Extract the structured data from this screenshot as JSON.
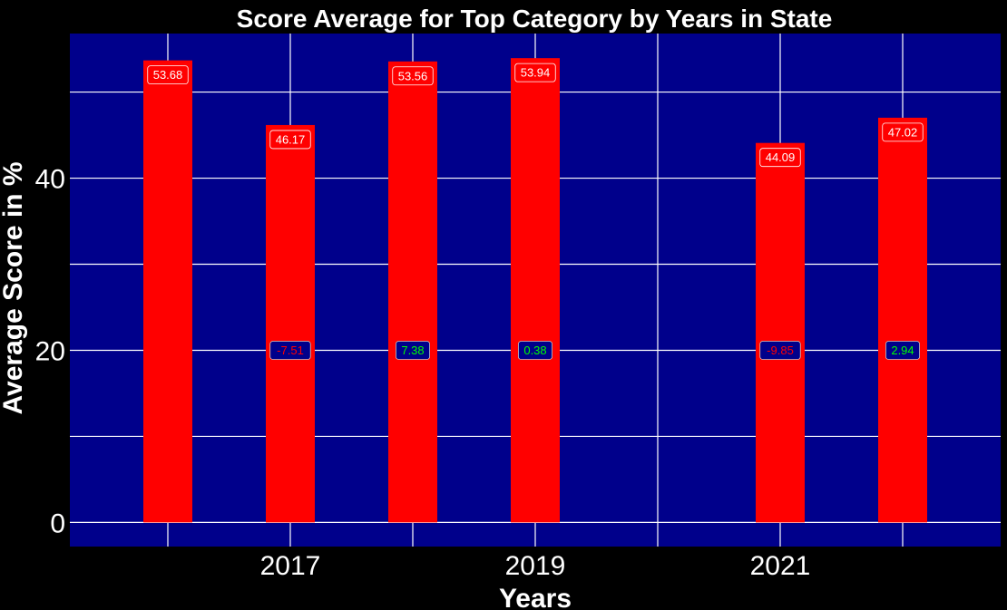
{
  "chart_data": {
    "type": "bar",
    "title": "Score Average for Top Category by Years in State",
    "xlabel": "Years",
    "ylabel": "Average Score in %",
    "x": [
      2016,
      2017,
      2018,
      2019,
      2021,
      2022
    ],
    "values": [
      53.68,
      46.17,
      53.56,
      53.94,
      44.09,
      47.02
    ],
    "value_labels": [
      "53.68",
      "46.17",
      "53.56",
      "53.94",
      "44.09",
      "47.02"
    ],
    "differences": [
      {
        "x": 2017,
        "label": "-7.51",
        "sign": "negative"
      },
      {
        "x": 2018,
        "label": "7.38",
        "sign": "positive"
      },
      {
        "x": 2019,
        "label": "0.38",
        "sign": "positive"
      },
      {
        "x": 2021,
        "label": "-9.85",
        "sign": "negative"
      },
      {
        "x": 2022,
        "label": "2.94",
        "sign": "positive"
      }
    ],
    "difference_label_y": 20,
    "x_ticks": [
      2017,
      2019,
      2021
    ],
    "x_tick_labels": [
      "2017",
      "2019",
      "2021"
    ],
    "y_ticks": [
      0,
      20,
      40
    ],
    "y_tick_labels": [
      "0",
      "20",
      "40"
    ],
    "xlim": [
      2015.2,
      2022.8
    ],
    "ylim": [
      -2.8,
      56.8
    ],
    "grid": true,
    "colors": {
      "figure_background": "#000000",
      "plot_background": "#00008b",
      "bar": "#ff0000",
      "grid": "#ffffff",
      "text": "#ffffff",
      "negative_text": "#ff0000",
      "positive_text": "#00ff00"
    }
  }
}
